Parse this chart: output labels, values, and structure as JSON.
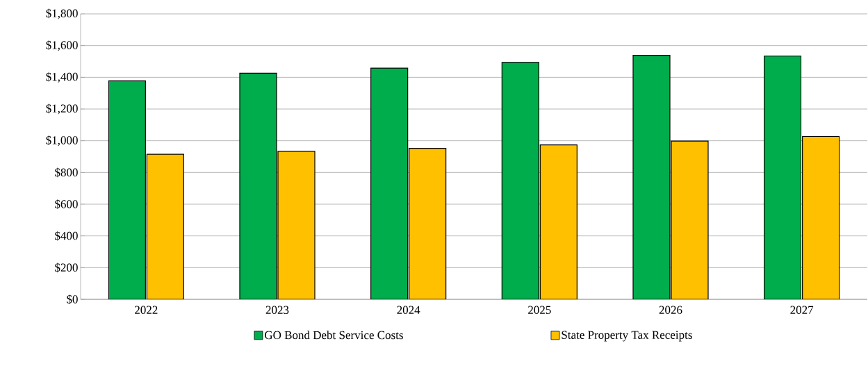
{
  "chart_data": {
    "type": "bar",
    "categories": [
      "2022",
      "2023",
      "2024",
      "2025",
      "2026",
      "2027"
    ],
    "series": [
      {
        "name": "GO Bond Debt Service Costs",
        "color": "#00ad4d",
        "values": [
          1378,
          1426,
          1458,
          1494,
          1539,
          1534
        ]
      },
      {
        "name": "State Property Tax Receipts",
        "color": "#ffc000",
        "values": [
          915,
          933,
          952,
          974,
          998,
          1027
        ]
      }
    ],
    "ylim": [
      0,
      1800
    ],
    "yticks": [
      {
        "value": 0,
        "label": "$0"
      },
      {
        "value": 200,
        "label": "$200"
      },
      {
        "value": 400,
        "label": "$400"
      },
      {
        "value": 600,
        "label": "$600"
      },
      {
        "value": 800,
        "label": "$800"
      },
      {
        "value": 1000,
        "label": "$1,000"
      },
      {
        "value": 1200,
        "label": "$1,200"
      },
      {
        "value": 1400,
        "label": "$1,400"
      },
      {
        "value": 1600,
        "label": "$1,600"
      },
      {
        "value": 1800,
        "label": "$1,800"
      }
    ],
    "grid": "y",
    "legend": "bottom"
  }
}
